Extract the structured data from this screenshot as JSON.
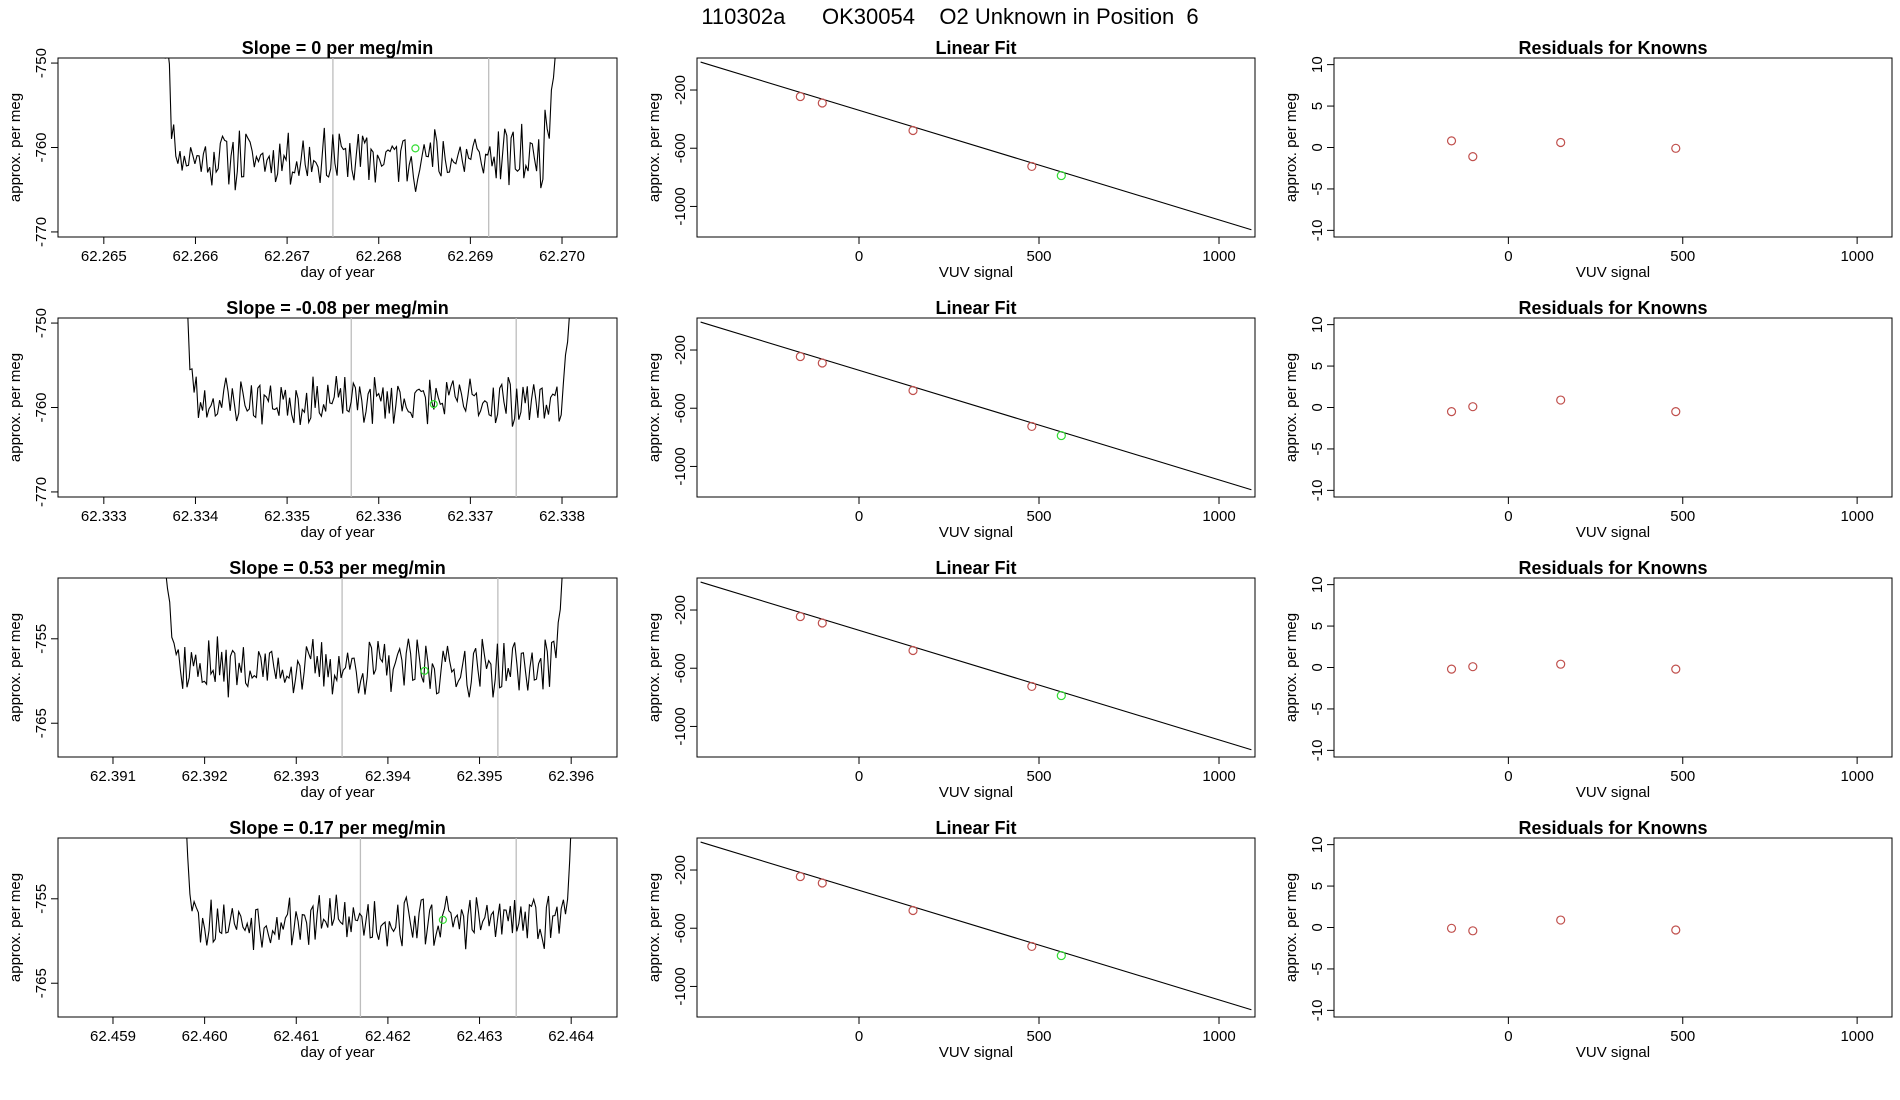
{
  "title": "110302a      OK30054    O2 Unknown in Position  6",
  "colors": {
    "trace": "#000000",
    "vline": "#bdbdbd",
    "known": "#c0504d",
    "unknown": "#33dd33",
    "fit": "#000000"
  },
  "chart_data": [
    {
      "type": "line",
      "row": 0,
      "panel": "timeseries",
      "title": "Slope =  0  per meg/min",
      "xlabel": "day of year",
      "ylabel": "approx. per meg",
      "xlim": [
        62.2645,
        62.2706
      ],
      "ylim": [
        -770.6,
        -749.4
      ],
      "xticks": [
        "62.265",
        "62.266",
        "62.267",
        "62.268",
        "62.269",
        "62.270"
      ],
      "yticks": [
        "-750",
        "-760",
        "-770"
      ],
      "t_start": 62.2656,
      "t_end": 62.27,
      "level": -761.2,
      "noise": 3.0,
      "seed": 11,
      "vlines": [
        62.2675,
        62.2692
      ],
      "unknown_point": {
        "x": 62.2684,
        "y": -760.1
      }
    },
    {
      "type": "scatter",
      "row": 0,
      "panel": "fit",
      "title": "Linear Fit",
      "xlabel": "VUV signal",
      "ylabel": "approx. per meg",
      "xlim": [
        -450,
        1100
      ],
      "ylim": [
        -1210,
        20
      ],
      "xticks": [
        "0",
        "500",
        "1000"
      ],
      "yticks": [
        "-200",
        "-600",
        "-1000"
      ],
      "fit_line": {
        "x": [
          -440,
          1090
        ],
        "y": [
          -8,
          -1160
        ]
      },
      "knowns": [
        {
          "x": -163,
          "y": -245
        },
        {
          "x": -102,
          "y": -289
        },
        {
          "x": 150,
          "y": -478
        },
        {
          "x": 480,
          "y": -725
        }
      ],
      "unknown": {
        "x": 562,
        "y": -788
      }
    },
    {
      "type": "scatter",
      "row": 0,
      "panel": "residuals",
      "title": "Residuals for Knowns",
      "xlabel": "VUV signal",
      "ylabel": "approx. per meg",
      "xlim": [
        -500,
        1100
      ],
      "ylim": [
        -10.8,
        10.8
      ],
      "xticks": [
        "0",
        "500",
        "1000"
      ],
      "yticks": [
        "10",
        "5",
        "0",
        "-5",
        "-10"
      ],
      "points": [
        {
          "x": -163,
          "y": 0.8
        },
        {
          "x": -102,
          "y": -1.1
        },
        {
          "x": 150,
          "y": 0.6
        },
        {
          "x": 480,
          "y": -0.1
        }
      ]
    },
    {
      "type": "line",
      "row": 1,
      "panel": "timeseries",
      "title": "Slope =  -0.08  per meg/min",
      "xlabel": "day of year",
      "ylabel": "approx. per meg",
      "xlim": [
        62.3325,
        62.3386
      ],
      "ylim": [
        -770.6,
        -749.4
      ],
      "xticks": [
        "62.333",
        "62.334",
        "62.335",
        "62.336",
        "62.337",
        "62.338"
      ],
      "yticks": [
        "-750",
        "-760",
        "-770"
      ],
      "t_start": 62.3338,
      "t_end": 62.3382,
      "level": -759.2,
      "noise": 2.4,
      "seed": 23,
      "vlines": [
        62.3357,
        62.3375
      ],
      "unknown_point": {
        "x": 62.3366,
        "y": -759.6
      }
    },
    {
      "type": "scatter",
      "row": 1,
      "panel": "fit",
      "title": "Linear Fit",
      "xlabel": "VUV signal",
      "ylabel": "approx. per meg",
      "xlim": [
        -450,
        1100
      ],
      "ylim": [
        -1210,
        20
      ],
      "xticks": [
        "0",
        "500",
        "1000"
      ],
      "yticks": [
        "-200",
        "-600",
        "-1000"
      ],
      "fit_line": {
        "x": [
          -440,
          1090
        ],
        "y": [
          -8,
          -1160
        ]
      },
      "knowns": [
        {
          "x": -163,
          "y": -245
        },
        {
          "x": -102,
          "y": -289
        },
        {
          "x": 150,
          "y": -478
        },
        {
          "x": 480,
          "y": -725
        }
      ],
      "unknown": {
        "x": 562,
        "y": -788
      }
    },
    {
      "type": "scatter",
      "row": 1,
      "panel": "residuals",
      "title": "Residuals for Knowns",
      "xlabel": "VUV signal",
      "ylabel": "approx. per meg",
      "xlim": [
        -500,
        1100
      ],
      "ylim": [
        -10.8,
        10.8
      ],
      "xticks": [
        "0",
        "500",
        "1000"
      ],
      "yticks": [
        "10",
        "5",
        "0",
        "-5",
        "-10"
      ],
      "points": [
        {
          "x": -163,
          "y": -0.5
        },
        {
          "x": -102,
          "y": 0.1
        },
        {
          "x": 150,
          "y": 0.9
        },
        {
          "x": 480,
          "y": -0.5
        }
      ]
    },
    {
      "type": "line",
      "row": 2,
      "panel": "timeseries",
      "title": "Slope =  0.53  per meg/min",
      "xlabel": "day of year",
      "ylabel": "approx. per meg",
      "xlim": [
        62.3904,
        62.3965
      ],
      "ylim": [
        -769.0,
        -747.8
      ],
      "xticks": [
        "62.391",
        "62.392",
        "62.393",
        "62.394",
        "62.395",
        "62.396"
      ],
      "yticks": [
        "-755",
        "-765"
      ],
      "t_start": 62.3915,
      "t_end": 62.396,
      "level": -758.4,
      "noise": 2.8,
      "seed": 37,
      "vlines": [
        62.3935,
        62.3952
      ],
      "unknown_point": {
        "x": 62.3944,
        "y": -758.8
      }
    },
    {
      "type": "scatter",
      "row": 2,
      "panel": "fit",
      "title": "Linear Fit",
      "xlabel": "VUV signal",
      "ylabel": "approx. per meg",
      "xlim": [
        -450,
        1100
      ],
      "ylim": [
        -1210,
        20
      ],
      "xticks": [
        "0",
        "500",
        "1000"
      ],
      "yticks": [
        "-200",
        "-600",
        "-1000"
      ],
      "fit_line": {
        "x": [
          -440,
          1090
        ],
        "y": [
          -8,
          -1160
        ]
      },
      "knowns": [
        {
          "x": -163,
          "y": -245
        },
        {
          "x": -102,
          "y": -289
        },
        {
          "x": 150,
          "y": -478
        },
        {
          "x": 480,
          "y": -725
        }
      ],
      "unknown": {
        "x": 562,
        "y": -788
      }
    },
    {
      "type": "scatter",
      "row": 2,
      "panel": "residuals",
      "title": "Residuals for Knowns",
      "xlabel": "VUV signal",
      "ylabel": "approx. per meg",
      "xlim": [
        -500,
        1100
      ],
      "ylim": [
        -10.8,
        10.8
      ],
      "xticks": [
        "0",
        "500",
        "1000"
      ],
      "yticks": [
        "10",
        "5",
        "0",
        "-5",
        "-10"
      ],
      "points": [
        {
          "x": -163,
          "y": -0.2
        },
        {
          "x": -102,
          "y": 0.1
        },
        {
          "x": 150,
          "y": 0.4
        },
        {
          "x": 480,
          "y": -0.2
        }
      ]
    },
    {
      "type": "line",
      "row": 3,
      "panel": "timeseries",
      "title": "Slope =  0.17  per meg/min",
      "xlabel": "day of year",
      "ylabel": "approx. per meg",
      "xlim": [
        62.4584,
        62.4645
      ],
      "ylim": [
        -769.0,
        -747.8
      ],
      "xticks": [
        "62.459",
        "62.460",
        "62.461",
        "62.462",
        "62.463",
        "62.464"
      ],
      "yticks": [
        "-755",
        "-765"
      ],
      "t_start": 62.4597,
      "t_end": 62.4641,
      "level": -757.6,
      "noise": 2.6,
      "seed": 53,
      "vlines": [
        62.4617,
        62.4634
      ],
      "unknown_point": {
        "x": 62.4626,
        "y": -757.5
      }
    },
    {
      "type": "scatter",
      "row": 3,
      "panel": "fit",
      "title": "Linear Fit",
      "xlabel": "VUV signal",
      "ylabel": "approx. per meg",
      "xlim": [
        -450,
        1100
      ],
      "ylim": [
        -1210,
        20
      ],
      "xticks": [
        "0",
        "500",
        "1000"
      ],
      "yticks": [
        "-200",
        "-600",
        "-1000"
      ],
      "fit_line": {
        "x": [
          -440,
          1090
        ],
        "y": [
          -8,
          -1160
        ]
      },
      "knowns": [
        {
          "x": -163,
          "y": -245
        },
        {
          "x": -102,
          "y": -289
        },
        {
          "x": 150,
          "y": -478
        },
        {
          "x": 480,
          "y": -725
        }
      ],
      "unknown": {
        "x": 562,
        "y": -788
      }
    },
    {
      "type": "scatter",
      "row": 3,
      "panel": "residuals",
      "title": "Residuals for Knowns",
      "xlabel": "VUV signal",
      "ylabel": "approx. per meg",
      "xlim": [
        -500,
        1100
      ],
      "ylim": [
        -10.8,
        10.8
      ],
      "xticks": [
        "0",
        "500",
        "1000"
      ],
      "yticks": [
        "10",
        "5",
        "0",
        "-5",
        "-10"
      ],
      "points": [
        {
          "x": -163,
          "y": -0.1
        },
        {
          "x": -102,
          "y": -0.4
        },
        {
          "x": 150,
          "y": 0.9
        },
        {
          "x": 480,
          "y": -0.3
        }
      ]
    }
  ]
}
